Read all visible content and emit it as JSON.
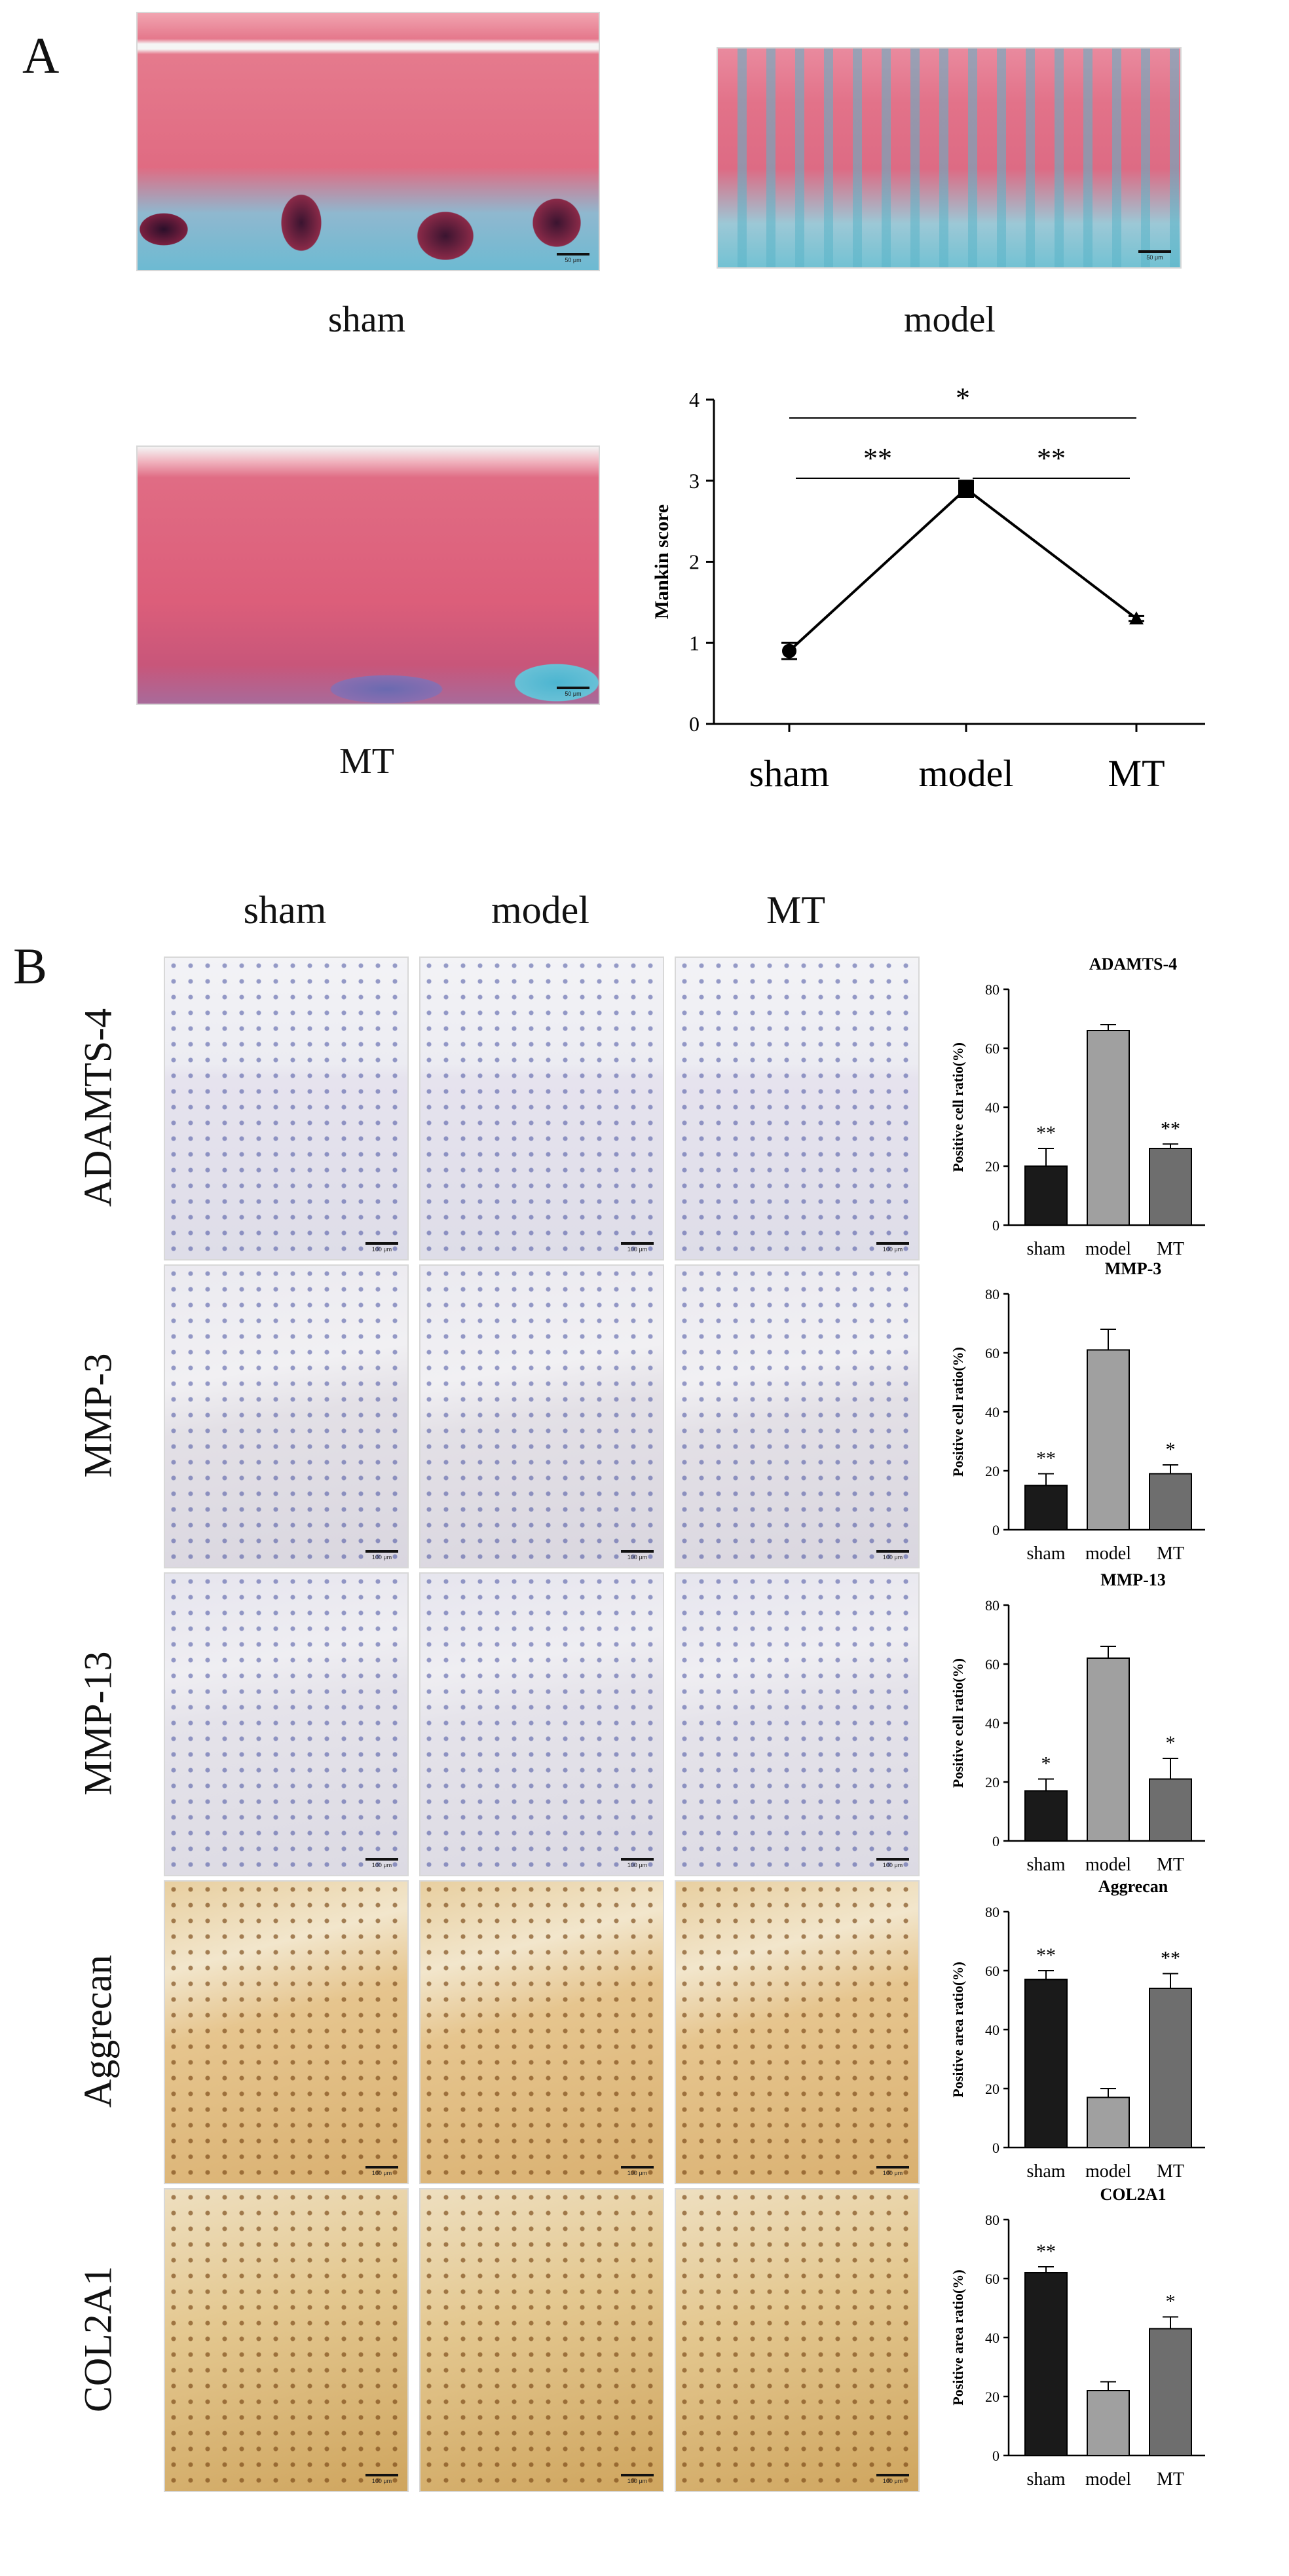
{
  "panel_a": {
    "letter": "A",
    "images": [
      {
        "caption": "sham",
        "scale": "50 μm"
      },
      {
        "caption": "model",
        "scale": "50 μm"
      },
      {
        "caption": "MT",
        "scale": "50 μm"
      }
    ]
  },
  "panel_b": {
    "letter": "B",
    "columns": [
      "sham",
      "model",
      "MT"
    ],
    "rows": [
      "ADAMTS-4",
      "MMP-3",
      "MMP-13",
      "Aggrecan",
      "COL2A1"
    ],
    "scale": "100 μm"
  },
  "chart_data": [
    {
      "type": "line",
      "ylabel": "Mankin score",
      "categories": [
        "sham",
        "model",
        "MT"
      ],
      "values": [
        0.9,
        2.9,
        1.3
      ],
      "errors": [
        0.1,
        0.1,
        0.03
      ],
      "ylim": [
        0,
        4
      ],
      "yticks": [
        "0",
        "1",
        "2",
        "3",
        "4"
      ],
      "significance": [
        {
          "from": "sham",
          "to": "model",
          "label": "**"
        },
        {
          "from": "model",
          "to": "MT",
          "label": "**"
        },
        {
          "from": "sham",
          "to": "MT",
          "label": "*"
        }
      ]
    },
    {
      "type": "bar",
      "title": "ADAMTS-4",
      "ylabel": "Positive cell ratio(%)",
      "categories": [
        "sham",
        "model",
        "MT"
      ],
      "values": [
        20,
        66,
        26
      ],
      "errors": [
        6,
        2,
        1.5
      ],
      "ylim": [
        0,
        80
      ],
      "yticks": [
        "0",
        "20",
        "40",
        "60",
        "80"
      ],
      "colors": [
        "#1a1a1a",
        "#a0a0a0",
        "#6e6e6e"
      ],
      "significance": [
        "**",
        "",
        "**"
      ]
    },
    {
      "type": "bar",
      "title": "MMP-3",
      "ylabel": "Positive cell ratio(%)",
      "categories": [
        "sham",
        "model",
        "MT"
      ],
      "values": [
        15,
        61,
        19
      ],
      "errors": [
        4,
        7,
        3
      ],
      "ylim": [
        0,
        80
      ],
      "yticks": [
        "0",
        "20",
        "40",
        "60",
        "80"
      ],
      "colors": [
        "#1a1a1a",
        "#a0a0a0",
        "#6e6e6e"
      ],
      "significance": [
        "**",
        "",
        "*"
      ]
    },
    {
      "type": "bar",
      "title": "MMP-13",
      "ylabel": "Positive cell ratio(%)",
      "categories": [
        "sham",
        "model",
        "MT"
      ],
      "values": [
        17,
        62,
        21
      ],
      "errors": [
        4,
        4,
        7
      ],
      "ylim": [
        0,
        80
      ],
      "yticks": [
        "0",
        "20",
        "40",
        "60",
        "80"
      ],
      "colors": [
        "#1a1a1a",
        "#a0a0a0",
        "#6e6e6e"
      ],
      "significance": [
        "*",
        "",
        "*"
      ]
    },
    {
      "type": "bar",
      "title": "Aggrecan",
      "ylabel": "Positive area ratio(%)",
      "categories": [
        "sham",
        "model",
        "MT"
      ],
      "values": [
        57,
        17,
        54
      ],
      "errors": [
        3,
        3,
        5
      ],
      "ylim": [
        0,
        80
      ],
      "yticks": [
        "0",
        "20",
        "40",
        "60",
        "80"
      ],
      "colors": [
        "#1a1a1a",
        "#a0a0a0",
        "#6e6e6e"
      ],
      "significance": [
        "**",
        "",
        "**"
      ]
    },
    {
      "type": "bar",
      "title": "COL2A1",
      "ylabel": "Positive area ratio(%)",
      "categories": [
        "sham",
        "model",
        "MT"
      ],
      "values": [
        62,
        22,
        43
      ],
      "errors": [
        2,
        3,
        4
      ],
      "ylim": [
        0,
        80
      ],
      "yticks": [
        "0",
        "20",
        "40",
        "60",
        "80"
      ],
      "colors": [
        "#1a1a1a",
        "#a0a0a0",
        "#6e6e6e"
      ],
      "significance": [
        "**",
        "",
        "*"
      ]
    }
  ]
}
